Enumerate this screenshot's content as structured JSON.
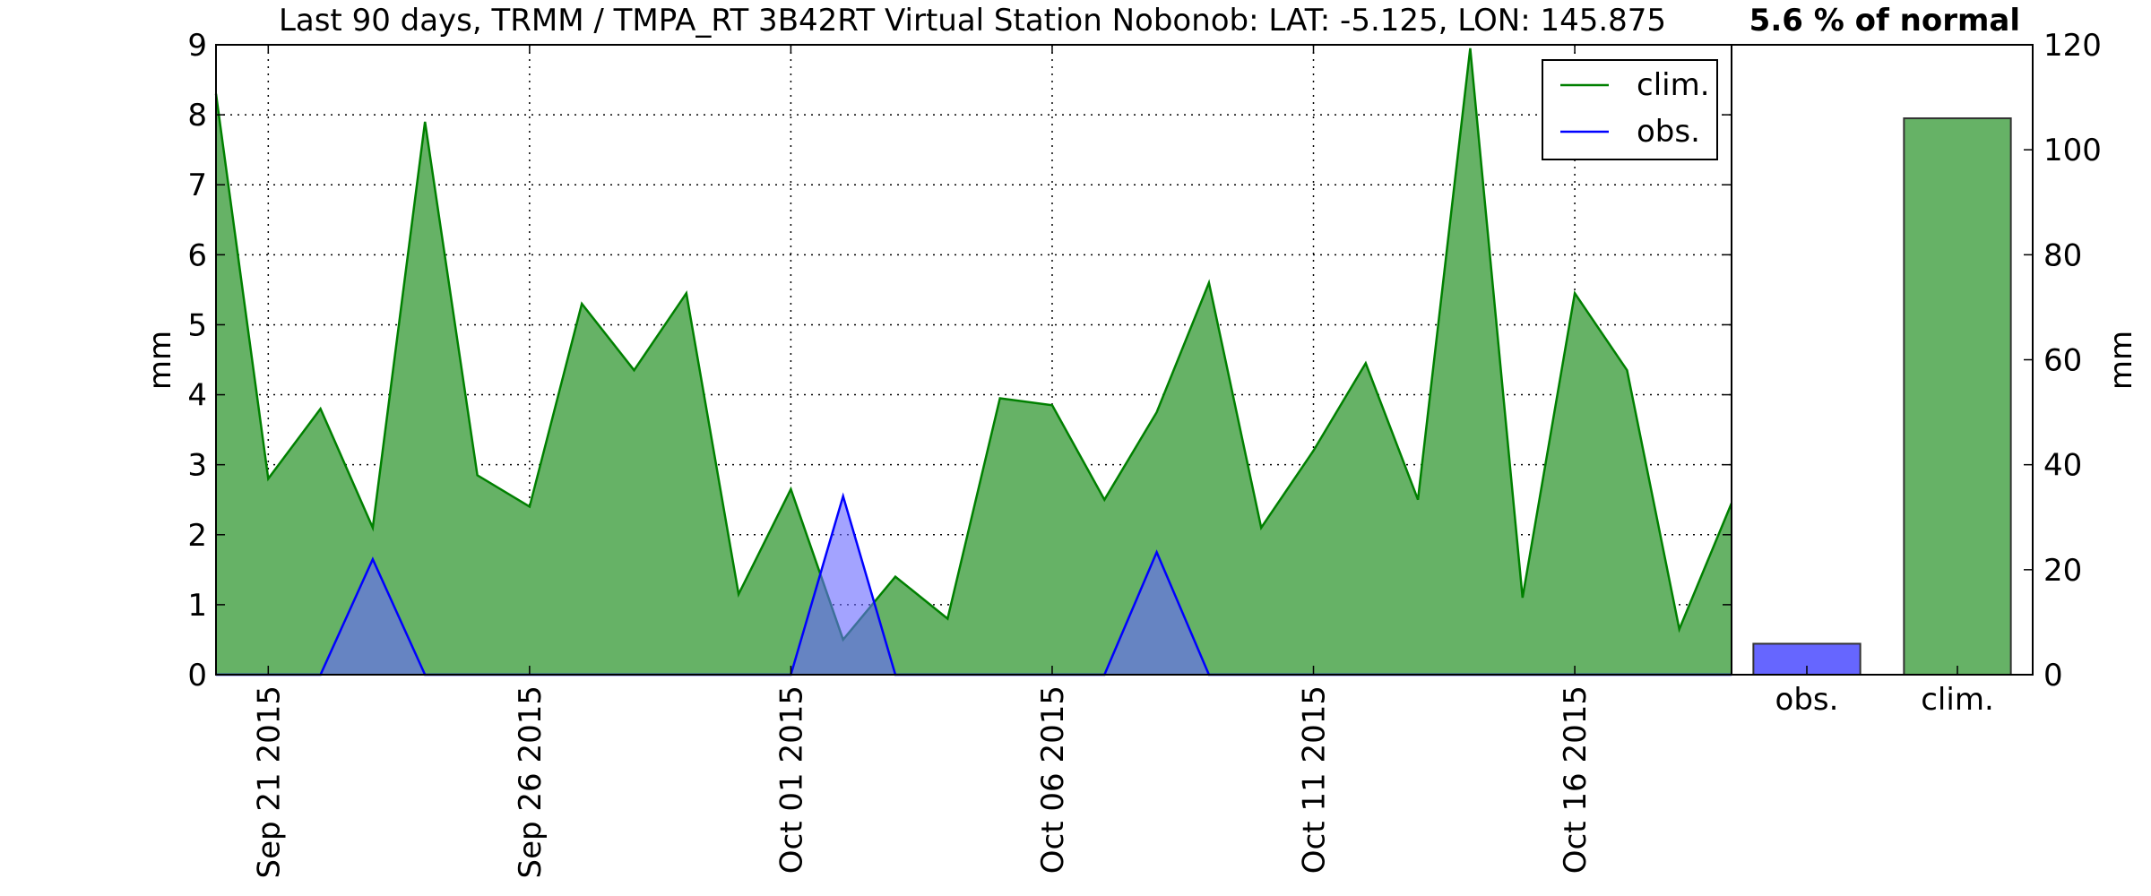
{
  "chart_data": [
    {
      "type": "area",
      "title": "Last 90 days, TRMM / TMPA_RT 3B42RT Virtual Station Nobonob: LAT: -5.125, LON: 145.875",
      "xlabel": "",
      "ylabel": "mm",
      "ylim": [
        0,
        9
      ],
      "yticks": [
        "0",
        "1",
        "2",
        "3",
        "4",
        "5",
        "6",
        "7",
        "8",
        "9"
      ],
      "xlim": [
        "2015-09-20",
        "2015-10-19"
      ],
      "xticks": [
        {
          "date": "2015-09-21",
          "label": "Sep 21 2015"
        },
        {
          "date": "2015-09-26",
          "label": "Sep 26 2015"
        },
        {
          "date": "2015-10-01",
          "label": "Oct 01 2015"
        },
        {
          "date": "2015-10-06",
          "label": "Oct 06 2015"
        },
        {
          "date": "2015-10-11",
          "label": "Oct 11 2015"
        },
        {
          "date": "2015-10-16",
          "label": "Oct 16 2015"
        }
      ],
      "grid": true,
      "legend_position": "top-right",
      "dates": [
        "2015-09-20",
        "2015-09-21",
        "2015-09-22",
        "2015-09-23",
        "2015-09-24",
        "2015-09-25",
        "2015-09-26",
        "2015-09-27",
        "2015-09-28",
        "2015-09-29",
        "2015-09-30",
        "2015-10-01",
        "2015-10-02",
        "2015-10-03",
        "2015-10-04",
        "2015-10-05",
        "2015-10-06",
        "2015-10-07",
        "2015-10-08",
        "2015-10-09",
        "2015-10-10",
        "2015-10-11",
        "2015-10-12",
        "2015-10-13",
        "2015-10-14",
        "2015-10-15",
        "2015-10-16",
        "2015-10-17",
        "2015-10-18",
        "2015-10-19"
      ],
      "series": [
        {
          "name": "clim.",
          "color": "#008000",
          "fill": "#66b266",
          "values": [
            8.3,
            2.8,
            3.8,
            2.1,
            7.9,
            2.85,
            2.4,
            5.3,
            4.35,
            5.45,
            1.15,
            2.65,
            0.5,
            1.4,
            0.8,
            3.95,
            3.85,
            2.5,
            3.75,
            5.6,
            2.1,
            3.2,
            4.45,
            2.5,
            8.95,
            1.1,
            5.45,
            4.35,
            0.65,
            2.45
          ]
        },
        {
          "name": "obs.",
          "color": "#0000ff",
          "fill": "#6666ff",
          "values": [
            0,
            0,
            0,
            1.65,
            0,
            0,
            0,
            0,
            0,
            0,
            0,
            0,
            2.55,
            0,
            0,
            0,
            0,
            0,
            1.75,
            0,
            0,
            0,
            0,
            0,
            0,
            0,
            0,
            0,
            0,
            0
          ]
        }
      ]
    },
    {
      "type": "bar",
      "title": "5.6 % of normal",
      "ylabel": "mm",
      "ylim": [
        0,
        120
      ],
      "yticks": [
        "0",
        "20",
        "40",
        "60",
        "80",
        "100",
        "120"
      ],
      "categories": [
        "obs.",
        "clim."
      ],
      "values": [
        5.9,
        106
      ],
      "colors": [
        "#6666ff",
        "#66b266"
      ]
    }
  ]
}
